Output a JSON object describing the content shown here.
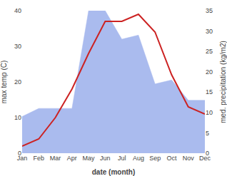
{
  "chart_data": {
    "type": "line",
    "xlabel": "date (month)",
    "ylabel": "max temp (C)",
    "y2label": "med. precipitation (kg/m2)",
    "categories": [
      "Jan",
      "Feb",
      "Mar",
      "Apr",
      "May",
      "Jun",
      "Jul",
      "Aug",
      "Sep",
      "Oct",
      "Nov",
      "Dec"
    ],
    "series": [
      {
        "type": "area",
        "axis": "y2",
        "color": "#aabbee",
        "values": [
          9,
          11,
          11,
          11,
          35,
          35,
          28,
          29,
          17,
          18,
          13,
          13
        ]
      },
      {
        "type": "line",
        "color": "#cc2222",
        "values": [
          2,
          4,
          10,
          18,
          28,
          37,
          37,
          39,
          34,
          22,
          13,
          11
        ]
      }
    ],
    "ylim": [
      0,
      40
    ],
    "yticks": [
      0,
      10,
      20,
      30,
      40
    ],
    "y2lim": [
      0,
      35
    ],
    "y2ticks": [
      0,
      5,
      10,
      15,
      20,
      25,
      30,
      35
    ],
    "grid": false
  }
}
